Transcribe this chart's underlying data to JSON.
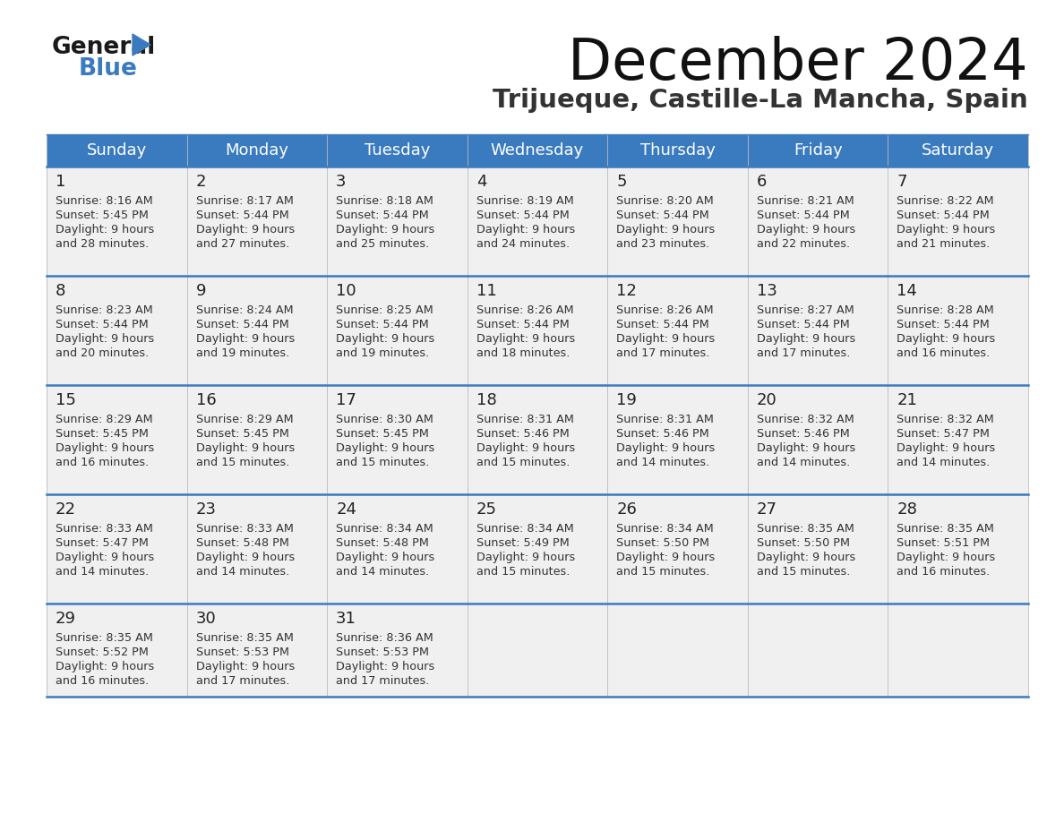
{
  "title": "December 2024",
  "subtitle": "Trijueque, Castille-La Mancha, Spain",
  "days_of_week": [
    "Sunday",
    "Monday",
    "Tuesday",
    "Wednesday",
    "Thursday",
    "Friday",
    "Saturday"
  ],
  "header_bg": "#3a7abf",
  "header_text": "#ffffff",
  "cell_bg": "#f0f0f0",
  "separator_color": "#3a7abf",
  "text_color": "#333333",
  "day_num_color": "#222222",
  "logo_general_color": "#1a1a1a",
  "logo_blue_color": "#3a7abf",
  "calendar_data": [
    [
      {
        "day": 1,
        "sunrise": "8:16 AM",
        "sunset": "5:45 PM",
        "daylight": "9 hours and 28 minutes."
      },
      {
        "day": 2,
        "sunrise": "8:17 AM",
        "sunset": "5:44 PM",
        "daylight": "9 hours and 27 minutes."
      },
      {
        "day": 3,
        "sunrise": "8:18 AM",
        "sunset": "5:44 PM",
        "daylight": "9 hours and 25 minutes."
      },
      {
        "day": 4,
        "sunrise": "8:19 AM",
        "sunset": "5:44 PM",
        "daylight": "9 hours and 24 minutes."
      },
      {
        "day": 5,
        "sunrise": "8:20 AM",
        "sunset": "5:44 PM",
        "daylight": "9 hours and 23 minutes."
      },
      {
        "day": 6,
        "sunrise": "8:21 AM",
        "sunset": "5:44 PM",
        "daylight": "9 hours and 22 minutes."
      },
      {
        "day": 7,
        "sunrise": "8:22 AM",
        "sunset": "5:44 PM",
        "daylight": "9 hours and 21 minutes."
      }
    ],
    [
      {
        "day": 8,
        "sunrise": "8:23 AM",
        "sunset": "5:44 PM",
        "daylight": "9 hours and 20 minutes."
      },
      {
        "day": 9,
        "sunrise": "8:24 AM",
        "sunset": "5:44 PM",
        "daylight": "9 hours and 19 minutes."
      },
      {
        "day": 10,
        "sunrise": "8:25 AM",
        "sunset": "5:44 PM",
        "daylight": "9 hours and 19 minutes."
      },
      {
        "day": 11,
        "sunrise": "8:26 AM",
        "sunset": "5:44 PM",
        "daylight": "9 hours and 18 minutes."
      },
      {
        "day": 12,
        "sunrise": "8:26 AM",
        "sunset": "5:44 PM",
        "daylight": "9 hours and 17 minutes."
      },
      {
        "day": 13,
        "sunrise": "8:27 AM",
        "sunset": "5:44 PM",
        "daylight": "9 hours and 17 minutes."
      },
      {
        "day": 14,
        "sunrise": "8:28 AM",
        "sunset": "5:44 PM",
        "daylight": "9 hours and 16 minutes."
      }
    ],
    [
      {
        "day": 15,
        "sunrise": "8:29 AM",
        "sunset": "5:45 PM",
        "daylight": "9 hours and 16 minutes."
      },
      {
        "day": 16,
        "sunrise": "8:29 AM",
        "sunset": "5:45 PM",
        "daylight": "9 hours and 15 minutes."
      },
      {
        "day": 17,
        "sunrise": "8:30 AM",
        "sunset": "5:45 PM",
        "daylight": "9 hours and 15 minutes."
      },
      {
        "day": 18,
        "sunrise": "8:31 AM",
        "sunset": "5:46 PM",
        "daylight": "9 hours and 15 minutes."
      },
      {
        "day": 19,
        "sunrise": "8:31 AM",
        "sunset": "5:46 PM",
        "daylight": "9 hours and 14 minutes."
      },
      {
        "day": 20,
        "sunrise": "8:32 AM",
        "sunset": "5:46 PM",
        "daylight": "9 hours and 14 minutes."
      },
      {
        "day": 21,
        "sunrise": "8:32 AM",
        "sunset": "5:47 PM",
        "daylight": "9 hours and 14 minutes."
      }
    ],
    [
      {
        "day": 22,
        "sunrise": "8:33 AM",
        "sunset": "5:47 PM",
        "daylight": "9 hours and 14 minutes."
      },
      {
        "day": 23,
        "sunrise": "8:33 AM",
        "sunset": "5:48 PM",
        "daylight": "9 hours and 14 minutes."
      },
      {
        "day": 24,
        "sunrise": "8:34 AM",
        "sunset": "5:48 PM",
        "daylight": "9 hours and 14 minutes."
      },
      {
        "day": 25,
        "sunrise": "8:34 AM",
        "sunset": "5:49 PM",
        "daylight": "9 hours and 15 minutes."
      },
      {
        "day": 26,
        "sunrise": "8:34 AM",
        "sunset": "5:50 PM",
        "daylight": "9 hours and 15 minutes."
      },
      {
        "day": 27,
        "sunrise": "8:35 AM",
        "sunset": "5:50 PM",
        "daylight": "9 hours and 15 minutes."
      },
      {
        "day": 28,
        "sunrise": "8:35 AM",
        "sunset": "5:51 PM",
        "daylight": "9 hours and 16 minutes."
      }
    ],
    [
      {
        "day": 29,
        "sunrise": "8:35 AM",
        "sunset": "5:52 PM",
        "daylight": "9 hours and 16 minutes."
      },
      {
        "day": 30,
        "sunrise": "8:35 AM",
        "sunset": "5:53 PM",
        "daylight": "9 hours and 17 minutes."
      },
      {
        "day": 31,
        "sunrise": "8:36 AM",
        "sunset": "5:53 PM",
        "daylight": "9 hours and 17 minutes."
      },
      null,
      null,
      null,
      null
    ]
  ]
}
